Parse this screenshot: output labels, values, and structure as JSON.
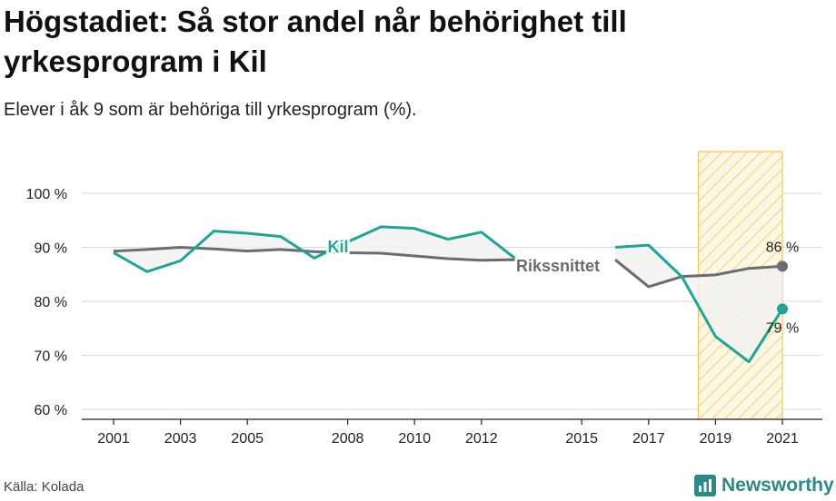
{
  "header": {
    "title": "Högstadiet: Så stor andel når behörighet till yrkesprogram i Kil",
    "subtitle": "Elever i åk 9 som är behöriga till yrkesprogram (%)."
  },
  "footer": {
    "source": "Källa: Kolada",
    "brand": "Newsworthy"
  },
  "colors": {
    "kil": "#1fa595",
    "rikssnittet": "#6d6a70",
    "highlight_stroke": "#f3c65c",
    "gap_fill": "#f2f2f2",
    "gap_fill_highlight": "#f9ecdf"
  },
  "chart_data": {
    "type": "line",
    "x": [
      2001,
      2002,
      2003,
      2004,
      2005,
      2006,
      2007,
      2008,
      2009,
      2010,
      2011,
      2012,
      2013,
      2014,
      2015,
      2016,
      2017,
      2018,
      2019,
      2020,
      2021
    ],
    "x_ticks": [
      2001,
      2003,
      2005,
      2008,
      2010,
      2012,
      2015,
      2017,
      2019,
      2021
    ],
    "xlim": [
      2000.1,
      2021.9
    ],
    "ylim": [
      58,
      100
    ],
    "y_ticks": [
      60,
      70,
      80,
      90,
      100
    ],
    "y_tick_labels": [
      "60 %",
      "70 %",
      "80 %",
      "90 %",
      "100 %"
    ],
    "series": [
      {
        "name": "Kil",
        "values": [
          89.0,
          85.5,
          87.5,
          93.0,
          92.6,
          92.0,
          88.0,
          91.0,
          93.8,
          93.5,
          91.5,
          92.8,
          88.0,
          null,
          null,
          90.0,
          90.4,
          84.5,
          73.5,
          68.8,
          78.6
        ]
      },
      {
        "name": "Rikssnittet",
        "values": [
          89.3,
          89.6,
          90.0,
          89.7,
          89.3,
          89.6,
          89.2,
          89.0,
          88.9,
          88.4,
          87.9,
          87.6,
          87.7,
          null,
          null,
          87.7,
          82.7,
          84.6,
          84.9,
          86.1,
          86.5
        ]
      }
    ],
    "highlight_range": [
      2019,
      2021
    ],
    "end_labels": {
      "rikssnittet": "86 %",
      "kil": "79 %"
    },
    "grid": true
  }
}
